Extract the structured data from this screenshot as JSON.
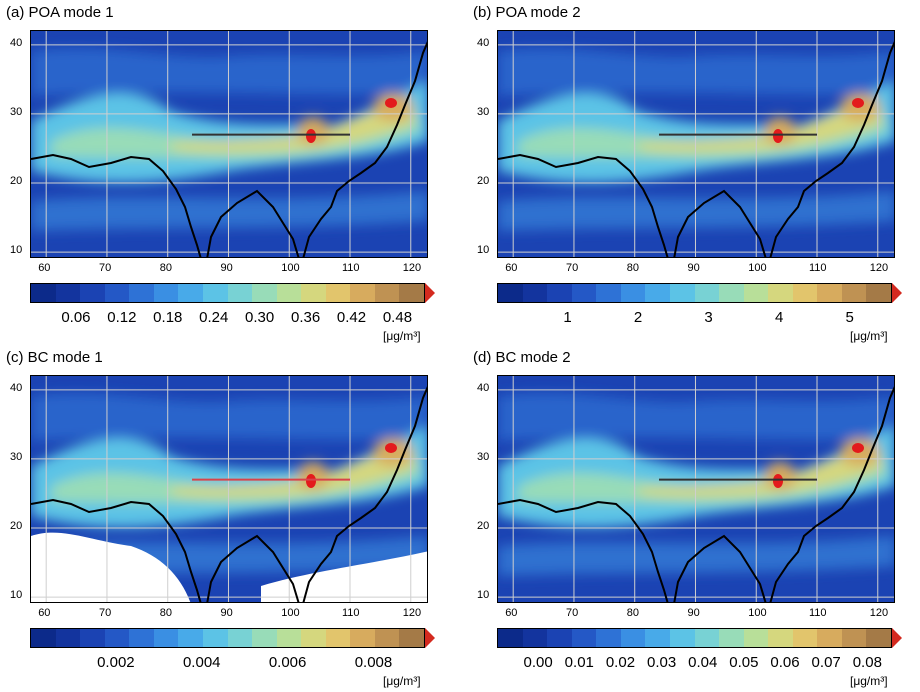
{
  "panels": [
    {
      "title": "(a) POA mode 1",
      "colorbar_labels": [
        "0.06",
        "0.12",
        "0.18",
        "0.24",
        "0.30",
        "0.36",
        "0.42",
        "0.48"
      ],
      "unit": "[μg/m³]",
      "line_color": "#333333",
      "white_area": false
    },
    {
      "title": "(b) POA mode 2",
      "colorbar_labels": [
        "1",
        "2",
        "3",
        "4",
        "5"
      ],
      "unit": "[μg/m³]",
      "line_color": "#333333",
      "white_area": false
    },
    {
      "title": "(c) BC mode 1",
      "colorbar_labels": [
        "0.002",
        "0.004",
        "0.006",
        "0.008"
      ],
      "unit": "[μg/m³]",
      "line_color": "#d9434a",
      "white_area": true
    },
    {
      "title": "(d) BC mode 2",
      "colorbar_labels": [
        "0.00",
        "0.01",
        "0.02",
        "0.03",
        "0.04",
        "0.05",
        "0.06",
        "0.07",
        "0.08"
      ],
      "unit": "[μg/m³]",
      "line_color": "#333333",
      "white_area": false
    }
  ],
  "lon_ticks": [
    "60",
    "70",
    "80",
    "90",
    "100",
    "110",
    "120"
  ],
  "lat_ticks": [
    "40",
    "30",
    "20",
    "10"
  ],
  "colorbar_colors": [
    "#0c2a8a",
    "#13349e",
    "#1b43b3",
    "#2458c6",
    "#2e72d6",
    "#3a8fe3",
    "#48aae9",
    "#5cc3e6",
    "#78d2d4",
    "#98dcb8",
    "#b8df99",
    "#d5d77e",
    "#e2c56c",
    "#d7ab5e",
    "#bf9253",
    "#a47a47"
  ],
  "colorbar_arrow_color": "#d42a1f"
}
